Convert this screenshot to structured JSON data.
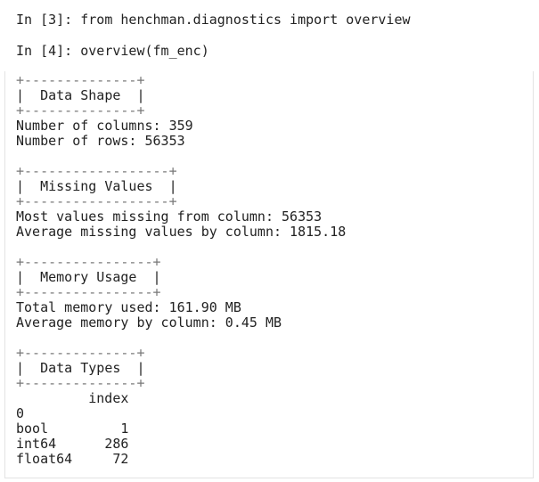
{
  "cells": [
    {
      "prompt": "In [3]:",
      "code": "from henchman.diagnostics import overview"
    },
    {
      "prompt": "In [4]:",
      "code": "overview(fm_enc)"
    }
  ],
  "output": {
    "sections": [
      {
        "frame_top": "+--------------+",
        "heading": "|  Data Shape  |",
        "frame_bottom": "+--------------+",
        "lines": [
          "Number of columns: 359",
          "Number of rows: 56353"
        ]
      },
      {
        "frame_top": "+------------------+",
        "heading": "|  Missing Values  |",
        "frame_bottom": "+------------------+",
        "lines": [
          "Most values missing from column: 56353",
          "Average missing values by column: 1815.18"
        ]
      },
      {
        "frame_top": "+----------------+",
        "heading": "|  Memory Usage  |",
        "frame_bottom": "+----------------+",
        "lines": [
          "Total memory used: 161.90 MB",
          "Average memory by column: 0.45 MB"
        ]
      },
      {
        "frame_top": "+--------------+",
        "heading": "|  Data Types  |",
        "frame_bottom": "+--------------+",
        "lines": []
      }
    ],
    "table": {
      "column": "index",
      "index_name": "0",
      "rows": [
        [
          "bool",
          "1"
        ],
        [
          "int64",
          "286"
        ],
        [
          "float64",
          "72"
        ]
      ]
    }
  }
}
